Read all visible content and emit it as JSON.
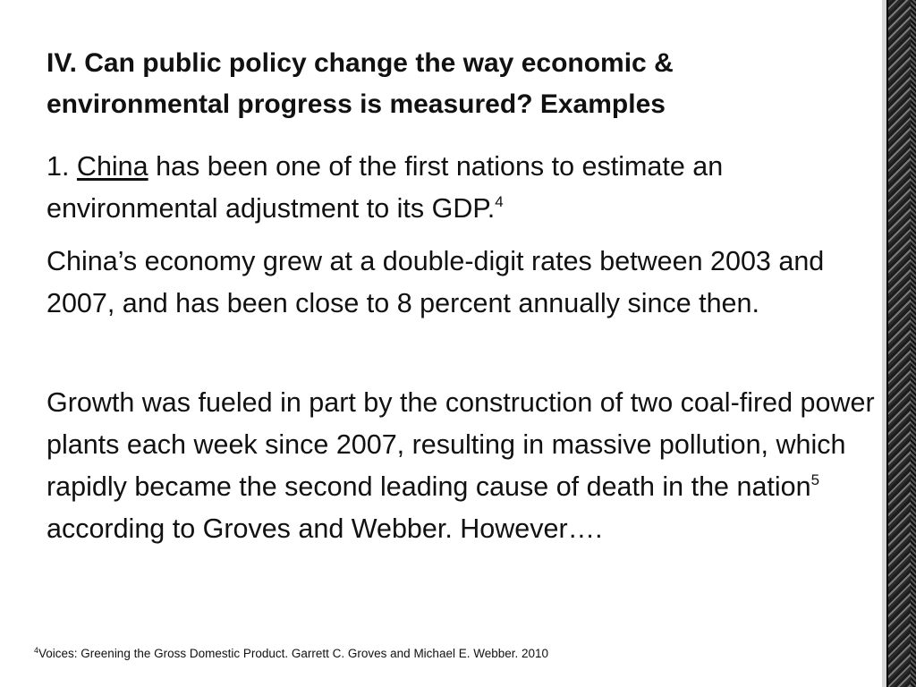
{
  "slide": {
    "title": "IV. Can public policy change the way economic & environmental progress is measured? Examples",
    "paragraph1": {
      "prefix": "1. ",
      "link": "China",
      "rest": " has been one of the first nations to estimate an environmental adjustment to its GDP.",
      "sup": "4"
    },
    "paragraph2": "China’s economy grew at a double-digit rates between 2003 and 2007, and has been close to 8 percent annually since then.",
    "paragraph3": {
      "part1": "Growth was fueled in part by the construction of two coal-fired power plants each week since 2007, resulting in massive pollution, which rapidly became the second leading cause of death in the nation",
      "sup": "5",
      "part2": " according to Groves and Webber. However…."
    },
    "footnote": {
      "sup": "4",
      "text": "Voices: Greening the Gross Domestic Product. Garrett C. Groves and Michael E. Webber. 2010"
    }
  }
}
